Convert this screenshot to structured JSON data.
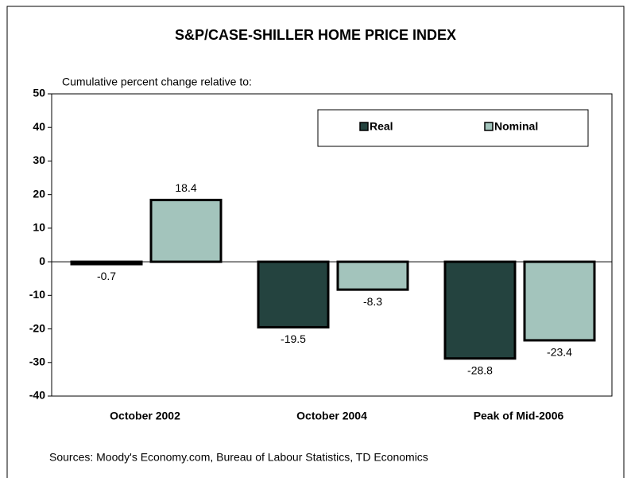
{
  "chart_data": {
    "type": "bar",
    "title": "S&P/CASE-SHILLER HOME PRICE INDEX",
    "subtitle": "Cumulative percent change relative to:",
    "source": "Sources: Moody's Economy.com, Bureau of Labour Statistics, TD Economics",
    "categories": [
      "October 2002",
      "October 2004",
      "Peak of Mid-2006"
    ],
    "series": [
      {
        "name": "Real",
        "color": "#24433f",
        "values": [
          -0.7,
          -19.5,
          -28.8
        ]
      },
      {
        "name": "Nominal",
        "color": "#a3c4bc",
        "values": [
          18.4,
          -8.3,
          -23.4
        ]
      }
    ],
    "ylim": [
      -40,
      50
    ],
    "yticks": [
      -40,
      -30,
      -20,
      -10,
      0,
      10,
      20,
      30,
      40,
      50
    ],
    "grid": false,
    "legend": "top-right"
  }
}
